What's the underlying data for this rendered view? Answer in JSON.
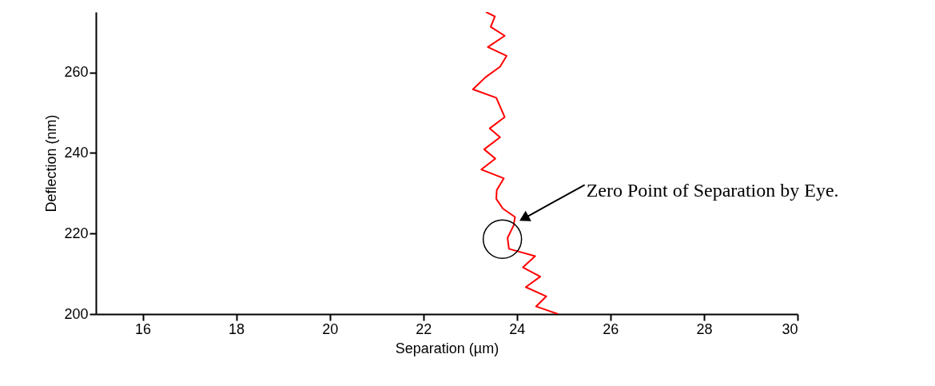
{
  "chart_data": {
    "type": "line",
    "xlabel": "Separation (µm)",
    "ylabel": "Deflection (nm)",
    "x": [
      23.34,
      23.53,
      23.44,
      23.74,
      23.38,
      23.78,
      23.64,
      23.33,
      23.06,
      23.56,
      23.74,
      23.42,
      23.64,
      23.3,
      23.54,
      23.24,
      23.72,
      23.57,
      23.56,
      23.7,
      23.96,
      23.93,
      23.8,
      23.83,
      24.39,
      24.13,
      24.5,
      24.19,
      24.63,
      24.41,
      24.88
    ],
    "series": [
      {
        "color": "#ff0000",
        "values": [
          275.0,
          273.9,
          271.3,
          269.1,
          266.3,
          264.1,
          261.4,
          258.8,
          255.8,
          253.7,
          248.9,
          246.1,
          243.9,
          240.9,
          238.6,
          235.9,
          233.7,
          230.8,
          228.6,
          226.2,
          224.1,
          222.0,
          218.9,
          216.2,
          214.4,
          211.6,
          209.3,
          206.7,
          204.4,
          201.9,
          200.0
        ]
      }
    ],
    "xlim": [
      15,
      30
    ],
    "xticks": [
      16,
      18,
      20,
      22,
      24,
      26,
      28,
      30
    ],
    "ylim": [
      200,
      275
    ],
    "yticks": [
      200,
      220,
      240,
      260
    ],
    "annotations": [
      "Zero Point of Separation by Eye."
    ],
    "grid": false,
    "marker": "none",
    "line_style": "solid"
  }
}
